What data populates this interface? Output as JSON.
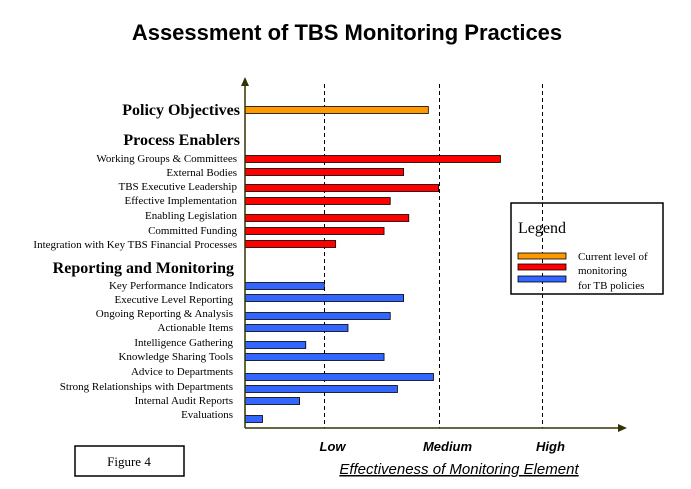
{
  "chart_data": {
    "type": "bar",
    "orientation": "horizontal",
    "title": "Assessment of TBS Monitoring Practices",
    "xlabel": "Effectiveness of Monitoring Element",
    "xlim": [
      0,
      3.66
    ],
    "x_ticks": [
      {
        "label": "Low",
        "value": 0.77
      },
      {
        "label": "Medium",
        "value": 1.88
      },
      {
        "label": "High",
        "value": 2.88
      }
    ],
    "grid": "dashed vertical lines at tick values",
    "colors": {
      "orange": "#FF9900",
      "red": "#FF0000",
      "blue": "#3366FF",
      "axis": "#333300"
    },
    "sections": [
      {
        "name": "Policy Objectives",
        "color": "#FF9900",
        "items": [
          {
            "label": "",
            "value": 1.78
          }
        ]
      },
      {
        "name": "Process Enablers",
        "color": "#FF0000",
        "items": [
          {
            "label": "Working Groups & Committees",
            "value": 2.48
          },
          {
            "label": "External Bodies",
            "value": 1.54
          },
          {
            "label": "TBS Executive Leadership",
            "value": 1.88
          },
          {
            "label": "Effective Implementation",
            "value": 1.41
          },
          {
            "label": "Enabling Legislation",
            "value": 1.59
          },
          {
            "label": "Committed Funding",
            "value": 1.35
          },
          {
            "label": "Integration with Key TBS Financial Processes",
            "value": 0.88
          }
        ]
      },
      {
        "name": "Reporting and Monitoring",
        "color": "#3366FF",
        "items": [
          {
            "label": "Key Performance Indicators",
            "value": 0.77
          },
          {
            "label": "Executive Level Reporting",
            "value": 1.54
          },
          {
            "label": "Ongoing Reporting & Analysis",
            "value": 1.41
          },
          {
            "label": "Actionable Items",
            "value": 1.0
          },
          {
            "label": "Intelligence Gathering",
            "value": 0.59
          },
          {
            "label": "Knowledge Sharing Tools",
            "value": 1.35
          },
          {
            "label": "Advice to Departments",
            "value": 1.83
          },
          {
            "label": "Strong Relationships with Departments",
            "value": 1.48
          },
          {
            "label": "Internal Audit Reports",
            "value": 0.53
          },
          {
            "label": "Evaluations",
            "value": 0.17
          }
        ]
      }
    ],
    "legend": {
      "title": "Legend",
      "placement": "right",
      "lines": [
        "Current level of",
        "monitoring",
        "for TB policies"
      ]
    }
  },
  "figure_label": "Figure 4"
}
